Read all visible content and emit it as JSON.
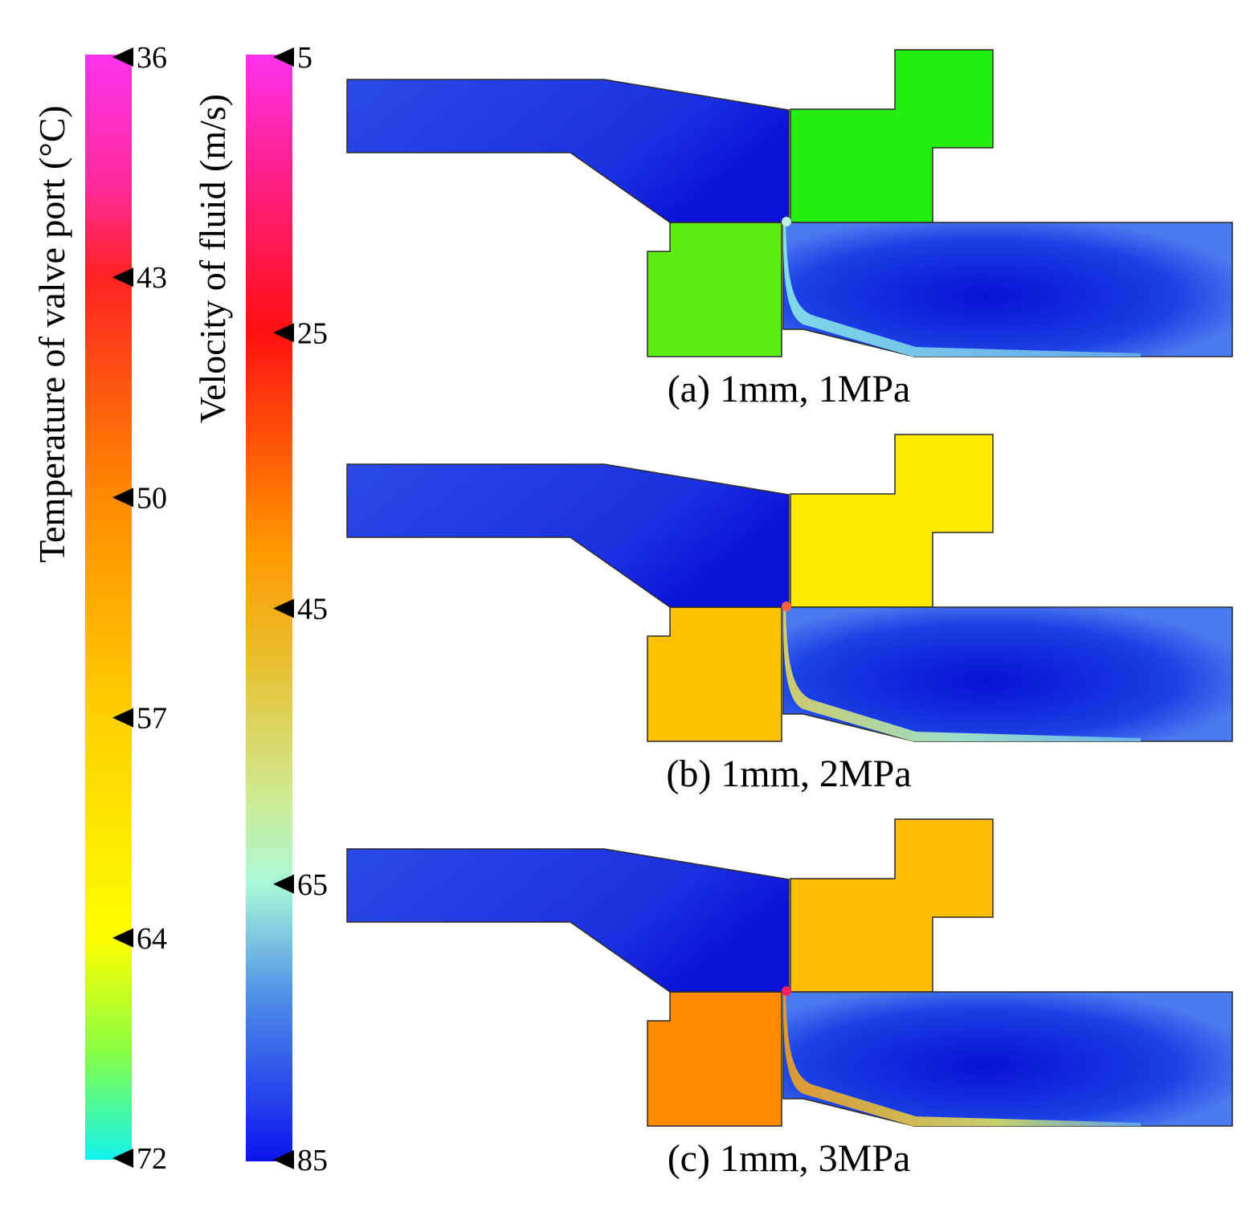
{
  "temperature_scale": {
    "title": "Temperature of valve port (°C)",
    "ticks": [
      "36",
      "43",
      "50",
      "57",
      "64",
      "72"
    ]
  },
  "velocity_scale": {
    "title": "Velocity of fluid (m/s)",
    "ticks": [
      "5",
      "25",
      "45",
      "65",
      "85"
    ]
  },
  "panels": [
    {
      "caption": "(a) 1mm, 1MPa",
      "solid_color": "#22ee10",
      "lower_solid_color": "#5cee10",
      "jet": "low"
    },
    {
      "caption": "(b) 1mm, 2MPa",
      "solid_color": "#ffe900",
      "lower_solid_color": "#ffc200",
      "jet": "mid"
    },
    {
      "caption": "(c) 1mm, 3MPa",
      "solid_color": "#ffbe00",
      "lower_solid_color": "#ff8a00",
      "jet": "high"
    }
  ]
}
